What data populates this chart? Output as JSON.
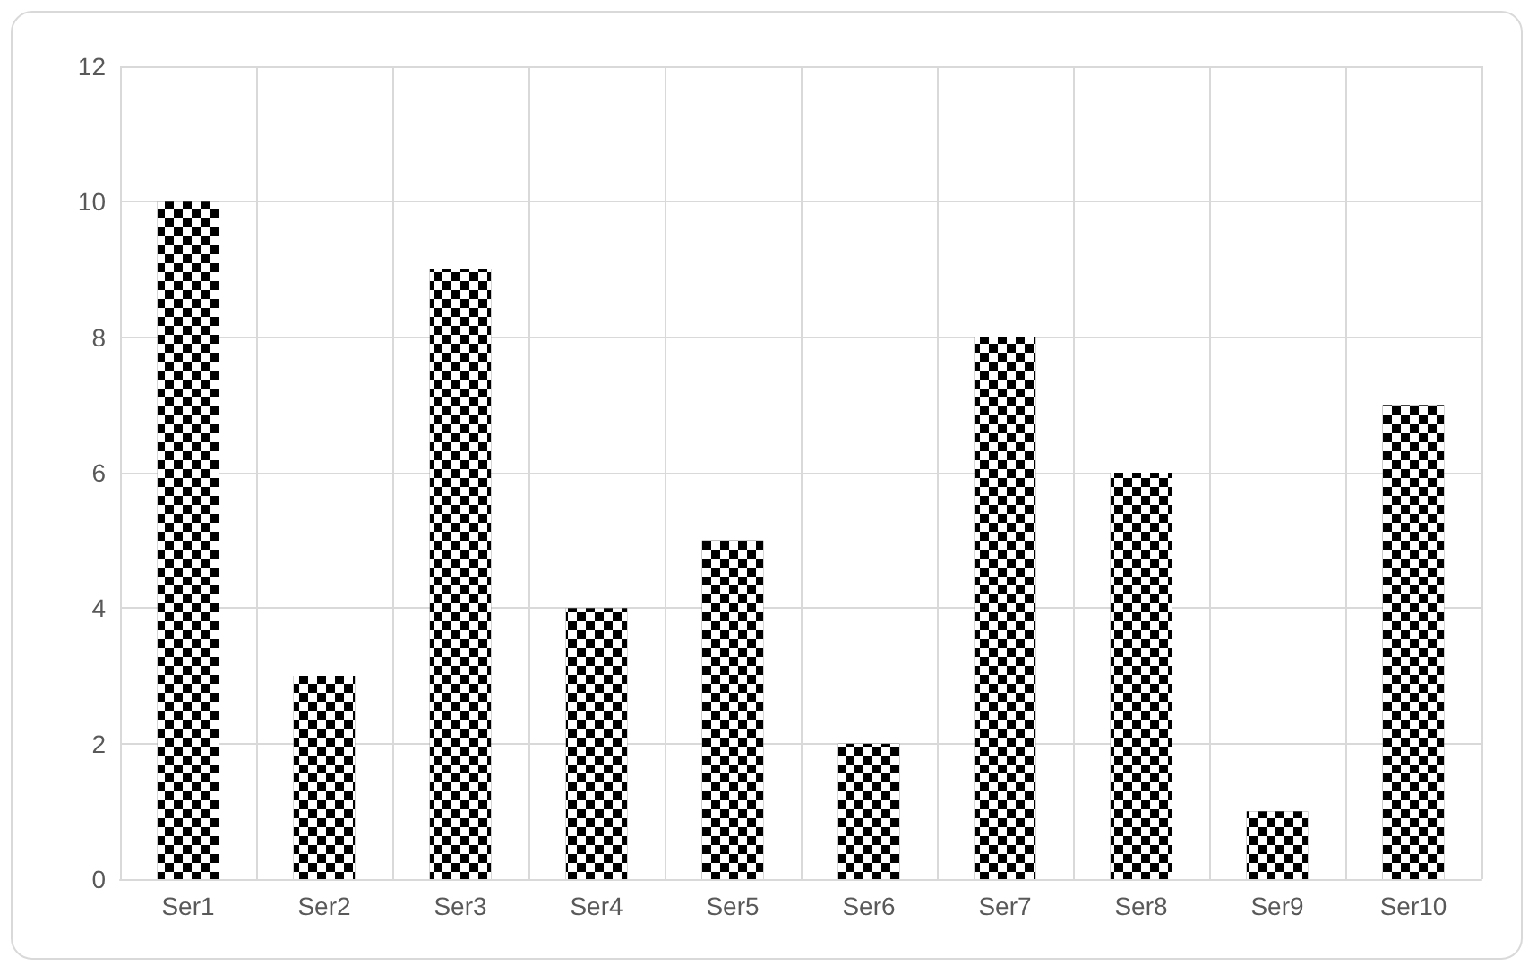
{
  "chart_data": {
    "type": "bar",
    "categories": [
      "Ser1",
      "Ser2",
      "Ser3",
      "Ser4",
      "Ser5",
      "Ser6",
      "Ser7",
      "Ser8",
      "Ser9",
      "Ser10"
    ],
    "values": [
      10,
      3,
      9,
      4,
      5,
      2,
      8,
      6,
      1,
      7
    ],
    "color": "#000000",
    "ylim": [
      0,
      12
    ],
    "yticks": [
      0,
      2,
      4,
      6,
      8,
      10,
      12
    ],
    "grid": true
  }
}
